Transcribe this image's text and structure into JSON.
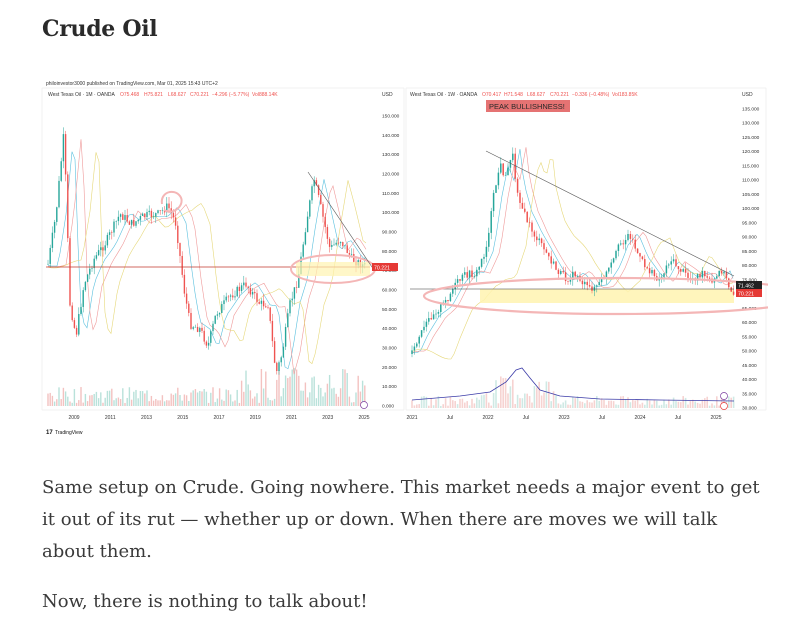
{
  "post": {
    "heading": "Crude Oil",
    "paragraph1": "Same setup on Crude. Going nowhere. This market needs a major event to get it out of its rut — whether up or down. When there are moves we will talk about them.",
    "paragraph2": "Now, there is nothing to talk about!"
  },
  "figure": {
    "publisher_line": "philoinvestor3000 published on TradingView.com, Mar 01, 2025 15:43 UTC+2",
    "footer_logo_text": "TradingView",
    "colors": {
      "up": "#26a69a",
      "down": "#ef5350",
      "highlight": "#fff3b0",
      "circle": "#f4b6b6",
      "volume_line": "#3b3ba8"
    },
    "left_chart": {
      "symbol_line": "West Texas Oil · 1M · OANDA",
      "ohlc": {
        "o": "O75.468",
        "h": "H75.821",
        "l": "L68.627",
        "c": "C70.221",
        "chg": "−4.296 (−5.77%)",
        "vol": "Vol888.14K"
      },
      "currency": "USD",
      "price_labels": [
        "150.000",
        "140.000",
        "130.000",
        "120.000",
        "110.000",
        "100.000",
        "90.000",
        "80.000",
        "70.000",
        "60.000",
        "50.000",
        "40.000",
        "30.000",
        "20.000",
        "10.000",
        "0.000"
      ],
      "current_price": "70.221",
      "x_labels": [
        "2009",
        "2011",
        "2013",
        "2015",
        "2017",
        "2019",
        "2021",
        "2023",
        "2025"
      ]
    },
    "right_chart": {
      "symbol_line": "West Texas Oil · 1W · OANDA",
      "ohlc": {
        "o": "O70.417",
        "h": "H71.548",
        "l": "L68.627",
        "c": "C70.221",
        "chg": "−0.336 (−0.48%)",
        "vol": "Vol183.85K"
      },
      "currency": "USD",
      "annotation": "PEAK BULLISHNESS!",
      "price_labels": [
        "135.000",
        "130.000",
        "125.000",
        "120.000",
        "115.000",
        "110.000",
        "105.000",
        "100.000",
        "95.000",
        "90.000",
        "85.000",
        "80.000",
        "75.000",
        "70.000",
        "65.000",
        "60.000",
        "55.000",
        "50.000",
        "45.000",
        "40.000",
        "35.000",
        "30.000"
      ],
      "current_price": "70.221",
      "line_price": "71.462",
      "x_labels": [
        "2021",
        "Jul",
        "2022",
        "Jul",
        "2023",
        "Jul",
        "2024",
        "Jul",
        "2025"
      ]
    }
  },
  "chart_data": [
    {
      "type": "candlestick",
      "title": "West Texas Oil · 1M · OANDA",
      "ylabel": "USD",
      "ylim": [
        0,
        155
      ],
      "x": [
        "2008",
        "2009",
        "2010",
        "2011",
        "2012",
        "2013",
        "2014",
        "2015",
        "2016",
        "2017",
        "2018",
        "2019",
        "2020",
        "2021",
        "2022",
        "2023",
        "2024",
        "2025"
      ],
      "close": [
        140,
        45,
        80,
        98,
        95,
        100,
        92,
        45,
        40,
        55,
        70,
        55,
        20,
        70,
        118,
        78,
        72,
        70
      ],
      "horizontal_line": 70.221
    },
    {
      "type": "candlestick",
      "title": "West Texas Oil · 1W · OANDA",
      "ylabel": "USD",
      "ylim": [
        28,
        138
      ],
      "x": [
        "2021",
        "2021-Jul",
        "2022",
        "2022-Jul",
        "2023",
        "2023-Jul",
        "2024",
        "2024-Jul",
        "2025"
      ],
      "close": [
        50,
        72,
        80,
        110,
        78,
        76,
        75,
        82,
        70
      ],
      "annotation": "PEAK BULLISHNESS!",
      "support_zone": [
        67,
        72
      ]
    }
  ]
}
